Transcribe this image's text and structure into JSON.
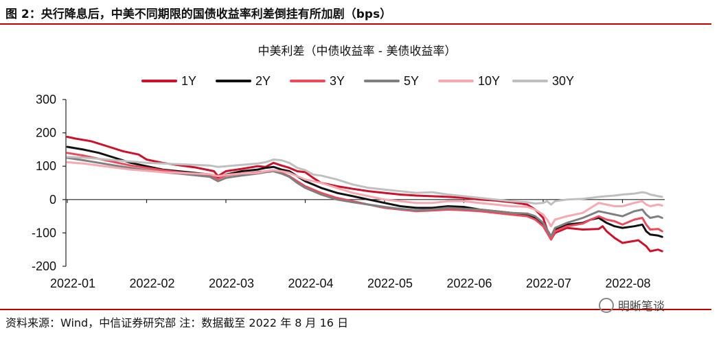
{
  "figure_title": "图 2：央行降息后，中美不同期限的国债收益率利差倒挂有所加剧（bps）",
  "source_note": "资料来源：Wind，中信证券研究部 注：数据截至 2022 年 8 月 16 日",
  "watermark": "明晰笔谈",
  "chart_data": {
    "type": "line",
    "title": "中美利差（中债收益率 - 美债收益率）",
    "xlabel": "",
    "ylabel": "",
    "ylim": [
      -200,
      300
    ],
    "yticks": [
      "300",
      "200",
      "100",
      "0",
      "-100",
      "-200"
    ],
    "xticks": [
      "2022-01",
      "2022-02",
      "2022-03",
      "2022-04",
      "2022-05",
      "2022-06",
      "2022-07",
      "2022-08"
    ],
    "x_range": [
      0,
      7.5
    ],
    "grid": false,
    "legend_position": "top",
    "series": [
      {
        "name": "1Y",
        "color": "#d0102a",
        "width": 3,
        "points": [
          [
            0,
            188
          ],
          [
            0.1,
            183
          ],
          [
            0.3,
            175
          ],
          [
            0.5,
            160
          ],
          [
            0.7,
            145
          ],
          [
            0.9,
            135
          ],
          [
            1.0,
            120
          ],
          [
            1.2,
            110
          ],
          [
            1.4,
            103
          ],
          [
            1.6,
            97
          ],
          [
            1.75,
            90
          ],
          [
            1.85,
            85
          ],
          [
            1.9,
            70
          ],
          [
            2.0,
            85
          ],
          [
            2.2,
            92
          ],
          [
            2.4,
            100
          ],
          [
            2.5,
            98
          ],
          [
            2.6,
            110
          ],
          [
            2.7,
            102
          ],
          [
            2.8,
            95
          ],
          [
            2.9,
            85
          ],
          [
            3.0,
            82
          ],
          [
            3.1,
            65
          ],
          [
            3.2,
            50
          ],
          [
            3.4,
            40
          ],
          [
            3.6,
            32
          ],
          [
            3.8,
            25
          ],
          [
            4.0,
            20
          ],
          [
            4.2,
            15
          ],
          [
            4.4,
            12
          ],
          [
            4.6,
            10
          ],
          [
            4.8,
            8
          ],
          [
            5.0,
            5
          ],
          [
            5.2,
            0
          ],
          [
            5.4,
            -3
          ],
          [
            5.6,
            -8
          ],
          [
            5.8,
            -15
          ],
          [
            5.9,
            -30
          ],
          [
            6.0,
            -55
          ],
          [
            6.05,
            -90
          ],
          [
            6.1,
            -120
          ],
          [
            6.15,
            -100
          ],
          [
            6.3,
            -85
          ],
          [
            6.5,
            -90
          ],
          [
            6.7,
            -88
          ],
          [
            6.75,
            -80
          ],
          [
            6.8,
            -95
          ],
          [
            6.9,
            -115
          ],
          [
            7.0,
            -130
          ],
          [
            7.2,
            -122
          ],
          [
            7.3,
            -140
          ],
          [
            7.35,
            -155
          ],
          [
            7.45,
            -150
          ],
          [
            7.5,
            -155
          ]
        ]
      },
      {
        "name": "2Y",
        "color": "#111111",
        "width": 3,
        "points": [
          [
            0,
            158
          ],
          [
            0.2,
            150
          ],
          [
            0.4,
            140
          ],
          [
            0.6,
            125
          ],
          [
            0.8,
            110
          ],
          [
            1.0,
            100
          ],
          [
            1.2,
            90
          ],
          [
            1.4,
            85
          ],
          [
            1.6,
            80
          ],
          [
            1.8,
            75
          ],
          [
            1.9,
            65
          ],
          [
            2.0,
            75
          ],
          [
            2.2,
            85
          ],
          [
            2.4,
            90
          ],
          [
            2.5,
            95
          ],
          [
            2.6,
            98
          ],
          [
            2.7,
            90
          ],
          [
            2.8,
            85
          ],
          [
            2.9,
            70
          ],
          [
            3.0,
            55
          ],
          [
            3.1,
            45
          ],
          [
            3.2,
            35
          ],
          [
            3.4,
            20
          ],
          [
            3.6,
            10
          ],
          [
            3.8,
            0
          ],
          [
            4.0,
            -10
          ],
          [
            4.2,
            -20
          ],
          [
            4.4,
            -25
          ],
          [
            4.6,
            -25
          ],
          [
            4.8,
            -20
          ],
          [
            5.0,
            -22
          ],
          [
            5.2,
            -30
          ],
          [
            5.4,
            -35
          ],
          [
            5.6,
            -40
          ],
          [
            5.8,
            -45
          ],
          [
            5.9,
            -55
          ],
          [
            6.0,
            -75
          ],
          [
            6.05,
            -95
          ],
          [
            6.1,
            -115
          ],
          [
            6.15,
            -90
          ],
          [
            6.3,
            -75
          ],
          [
            6.5,
            -70
          ],
          [
            6.6,
            -60
          ],
          [
            6.7,
            -55
          ],
          [
            6.8,
            -70
          ],
          [
            6.9,
            -80
          ],
          [
            7.0,
            -85
          ],
          [
            7.15,
            -80
          ],
          [
            7.25,
            -75
          ],
          [
            7.3,
            -95
          ],
          [
            7.35,
            -105
          ],
          [
            7.45,
            -108
          ],
          [
            7.5,
            -112
          ]
        ]
      },
      {
        "name": "3Y",
        "color": "#ee4a5d",
        "width": 3,
        "points": [
          [
            0,
            140
          ],
          [
            0.2,
            132
          ],
          [
            0.4,
            122
          ],
          [
            0.6,
            112
          ],
          [
            0.8,
            102
          ],
          [
            1.0,
            95
          ],
          [
            1.2,
            88
          ],
          [
            1.4,
            82
          ],
          [
            1.6,
            78
          ],
          [
            1.8,
            72
          ],
          [
            1.9,
            62
          ],
          [
            2.0,
            72
          ],
          [
            2.2,
            78
          ],
          [
            2.4,
            82
          ],
          [
            2.5,
            85
          ],
          [
            2.6,
            88
          ],
          [
            2.7,
            80
          ],
          [
            2.8,
            70
          ],
          [
            2.9,
            55
          ],
          [
            3.0,
            40
          ],
          [
            3.1,
            30
          ],
          [
            3.2,
            20
          ],
          [
            3.4,
            5
          ],
          [
            3.6,
            -5
          ],
          [
            3.8,
            -15
          ],
          [
            4.0,
            -25
          ],
          [
            4.2,
            -30
          ],
          [
            4.4,
            -35
          ],
          [
            4.6,
            -33
          ],
          [
            4.8,
            -30
          ],
          [
            5.0,
            -32
          ],
          [
            5.2,
            -35
          ],
          [
            5.4,
            -40
          ],
          [
            5.6,
            -45
          ],
          [
            5.8,
            -50
          ],
          [
            5.9,
            -60
          ],
          [
            6.0,
            -80
          ],
          [
            6.05,
            -100
          ],
          [
            6.1,
            -120
          ],
          [
            6.15,
            -95
          ],
          [
            6.3,
            -80
          ],
          [
            6.5,
            -72
          ],
          [
            6.6,
            -60
          ],
          [
            6.7,
            -50
          ],
          [
            6.8,
            -60
          ],
          [
            6.9,
            -65
          ],
          [
            7.0,
            -75
          ],
          [
            7.15,
            -60
          ],
          [
            7.25,
            -55
          ],
          [
            7.3,
            -75
          ],
          [
            7.35,
            -90
          ],
          [
            7.45,
            -88
          ],
          [
            7.5,
            -95
          ]
        ]
      },
      {
        "name": "5Y",
        "color": "#7f7f7f",
        "width": 3,
        "points": [
          [
            0,
            125
          ],
          [
            0.2,
            118
          ],
          [
            0.4,
            110
          ],
          [
            0.6,
            102
          ],
          [
            0.8,
            95
          ],
          [
            1.0,
            88
          ],
          [
            1.2,
            82
          ],
          [
            1.4,
            78
          ],
          [
            1.6,
            73
          ],
          [
            1.8,
            68
          ],
          [
            1.9,
            55
          ],
          [
            2.0,
            65
          ],
          [
            2.2,
            72
          ],
          [
            2.4,
            78
          ],
          [
            2.5,
            82
          ],
          [
            2.6,
            85
          ],
          [
            2.7,
            78
          ],
          [
            2.8,
            68
          ],
          [
            2.9,
            50
          ],
          [
            3.0,
            35
          ],
          [
            3.1,
            25
          ],
          [
            3.2,
            15
          ],
          [
            3.4,
            0
          ],
          [
            3.6,
            -8
          ],
          [
            3.8,
            -15
          ],
          [
            4.0,
            -22
          ],
          [
            4.2,
            -28
          ],
          [
            4.4,
            -32
          ],
          [
            4.6,
            -30
          ],
          [
            4.8,
            -25
          ],
          [
            5.0,
            -28
          ],
          [
            5.2,
            -30
          ],
          [
            5.4,
            -35
          ],
          [
            5.6,
            -40
          ],
          [
            5.8,
            -42
          ],
          [
            5.9,
            -50
          ],
          [
            6.0,
            -70
          ],
          [
            6.05,
            -90
          ],
          [
            6.1,
            -110
          ],
          [
            6.15,
            -85
          ],
          [
            6.3,
            -70
          ],
          [
            6.5,
            -55
          ],
          [
            6.6,
            -45
          ],
          [
            6.7,
            -35
          ],
          [
            6.8,
            -40
          ],
          [
            6.9,
            -45
          ],
          [
            7.0,
            -50
          ],
          [
            7.15,
            -35
          ],
          [
            7.25,
            -30
          ],
          [
            7.3,
            -45
          ],
          [
            7.35,
            -55
          ],
          [
            7.45,
            -50
          ],
          [
            7.5,
            -55
          ]
        ]
      },
      {
        "name": "10Y",
        "color": "#f6a9b0",
        "width": 3,
        "points": [
          [
            0,
            112
          ],
          [
            0.2,
            108
          ],
          [
            0.4,
            102
          ],
          [
            0.6,
            96
          ],
          [
            0.8,
            90
          ],
          [
            1.0,
            86
          ],
          [
            1.2,
            82
          ],
          [
            1.4,
            80
          ],
          [
            1.6,
            78
          ],
          [
            1.8,
            76
          ],
          [
            1.9,
            70
          ],
          [
            2.0,
            74
          ],
          [
            2.2,
            78
          ],
          [
            2.4,
            80
          ],
          [
            2.5,
            85
          ],
          [
            2.6,
            88
          ],
          [
            2.7,
            85
          ],
          [
            2.8,
            80
          ],
          [
            2.9,
            70
          ],
          [
            3.0,
            60
          ],
          [
            3.1,
            55
          ],
          [
            3.2,
            50
          ],
          [
            3.4,
            35
          ],
          [
            3.6,
            20
          ],
          [
            3.8,
            10
          ],
          [
            4.0,
            0
          ],
          [
            4.2,
            -5
          ],
          [
            4.4,
            -10
          ],
          [
            4.6,
            -10
          ],
          [
            4.8,
            -5
          ],
          [
            5.0,
            -5
          ],
          [
            5.2,
            -10
          ],
          [
            5.4,
            -15
          ],
          [
            5.6,
            -20
          ],
          [
            5.8,
            -22
          ],
          [
            5.9,
            -30
          ],
          [
            6.0,
            -45
          ],
          [
            6.05,
            -60
          ],
          [
            6.1,
            -80
          ],
          [
            6.15,
            -60
          ],
          [
            6.3,
            -50
          ],
          [
            6.5,
            -40
          ],
          [
            6.6,
            -25
          ],
          [
            6.7,
            -10
          ],
          [
            6.8,
            -15
          ],
          [
            6.9,
            -20
          ],
          [
            7.0,
            -20
          ],
          [
            7.15,
            -10
          ],
          [
            7.25,
            -5
          ],
          [
            7.3,
            -15
          ],
          [
            7.35,
            -20
          ],
          [
            7.45,
            -15
          ],
          [
            7.5,
            -18
          ]
        ]
      },
      {
        "name": "30Y",
        "color": "#bfbfbf",
        "width": 3,
        "points": [
          [
            0,
            128
          ],
          [
            0.2,
            126
          ],
          [
            0.4,
            122
          ],
          [
            0.6,
            118
          ],
          [
            0.8,
            114
          ],
          [
            1.0,
            110
          ],
          [
            1.2,
            108
          ],
          [
            1.4,
            106
          ],
          [
            1.6,
            104
          ],
          [
            1.8,
            102
          ],
          [
            1.9,
            98
          ],
          [
            2.0,
            100
          ],
          [
            2.2,
            104
          ],
          [
            2.4,
            108
          ],
          [
            2.5,
            112
          ],
          [
            2.6,
            120
          ],
          [
            2.7,
            118
          ],
          [
            2.8,
            110
          ],
          [
            2.9,
            95
          ],
          [
            3.0,
            88
          ],
          [
            3.1,
            75
          ],
          [
            3.2,
            72
          ],
          [
            3.4,
            60
          ],
          [
            3.6,
            45
          ],
          [
            3.8,
            35
          ],
          [
            4.0,
            30
          ],
          [
            4.2,
            25
          ],
          [
            4.4,
            20
          ],
          [
            4.6,
            22
          ],
          [
            4.8,
            15
          ],
          [
            5.0,
            10
          ],
          [
            5.2,
            5
          ],
          [
            5.4,
            0
          ],
          [
            5.6,
            -5
          ],
          [
            5.8,
            -8
          ],
          [
            5.9,
            -12
          ],
          [
            6.0,
            -10
          ],
          [
            6.05,
            -5
          ],
          [
            6.1,
            -15
          ],
          [
            6.15,
            -5
          ],
          [
            6.3,
            0
          ],
          [
            6.5,
            2
          ],
          [
            6.6,
            5
          ],
          [
            6.7,
            8
          ],
          [
            6.8,
            10
          ],
          [
            6.9,
            12
          ],
          [
            7.0,
            15
          ],
          [
            7.15,
            18
          ],
          [
            7.25,
            22
          ],
          [
            7.3,
            20
          ],
          [
            7.35,
            15
          ],
          [
            7.45,
            10
          ],
          [
            7.5,
            8
          ]
        ]
      }
    ]
  }
}
